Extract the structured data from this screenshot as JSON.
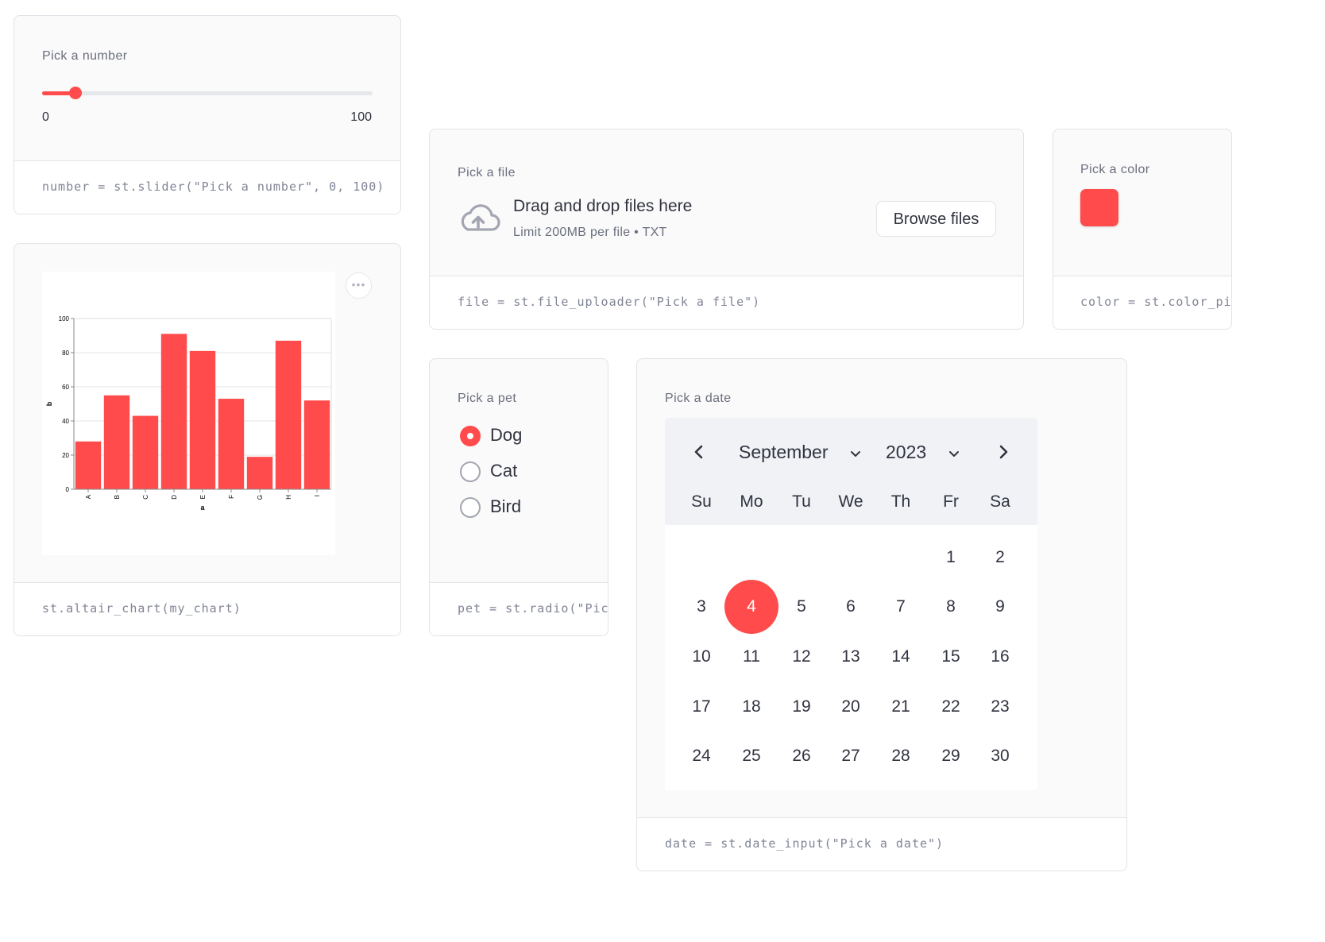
{
  "slider": {
    "label": "Pick a number",
    "min_label": "0",
    "max_label": "100",
    "value_fraction": 0.1,
    "code": "number = st.slider(\"Pick a number\", 0, 100)"
  },
  "chart_card": {
    "code": "st.altair_chart(my_chart)",
    "menu_label": "•••"
  },
  "chart_data": {
    "type": "bar",
    "categories": [
      "A",
      "B",
      "C",
      "D",
      "E",
      "F",
      "G",
      "H",
      "I"
    ],
    "values": [
      28,
      55,
      43,
      91,
      81,
      53,
      19,
      87,
      52
    ],
    "xlabel": "a",
    "ylabel": "b",
    "ylim": [
      0,
      100
    ],
    "yticks": [
      "0",
      "20",
      "40",
      "60",
      "80",
      "100"
    ],
    "grid": true,
    "bar_color": "#ff4b4b"
  },
  "uploader": {
    "label": "Pick a file",
    "title": "Drag and drop files here",
    "subtitle": "Limit 200MB per file • TXT",
    "button": "Browse files",
    "icon": "cloud-upload-icon",
    "code": "file = st.file_uploader(\"Pick a file\")"
  },
  "color_picker": {
    "label": "Pick a color",
    "value": "#ff4b4b",
    "code": "color = st.color_picker(\"Pick a color\")"
  },
  "radio": {
    "label": "Pick a pet",
    "options": [
      "Dog",
      "Cat",
      "Bird"
    ],
    "selected": "Dog",
    "code": "pet = st.radio(\"Pick a pet\", [\"Dog\", \"Cat\", \"Bird\"])"
  },
  "date_input": {
    "label": "Pick a date",
    "month": "September",
    "year": "2023",
    "weekdays": [
      "Su",
      "Mo",
      "Tu",
      "We",
      "Th",
      "Fr",
      "Sa"
    ],
    "weeks": [
      [
        "",
        "",
        "",
        "",
        "",
        "1",
        "2"
      ],
      [
        "3",
        "4",
        "5",
        "6",
        "7",
        "8",
        "9"
      ],
      [
        "10",
        "11",
        "12",
        "13",
        "14",
        "15",
        "16"
      ],
      [
        "17",
        "18",
        "19",
        "20",
        "21",
        "22",
        "23"
      ],
      [
        "24",
        "25",
        "26",
        "27",
        "28",
        "29",
        "30"
      ]
    ],
    "selected_day": "4",
    "code": "date = st.date_input(\"Pick a date\")"
  },
  "colors": {
    "accent": "#ff4b4b",
    "card_bg": "#fafafa",
    "border": "#e1e3e8",
    "muted_text": "#6b6f7e"
  }
}
